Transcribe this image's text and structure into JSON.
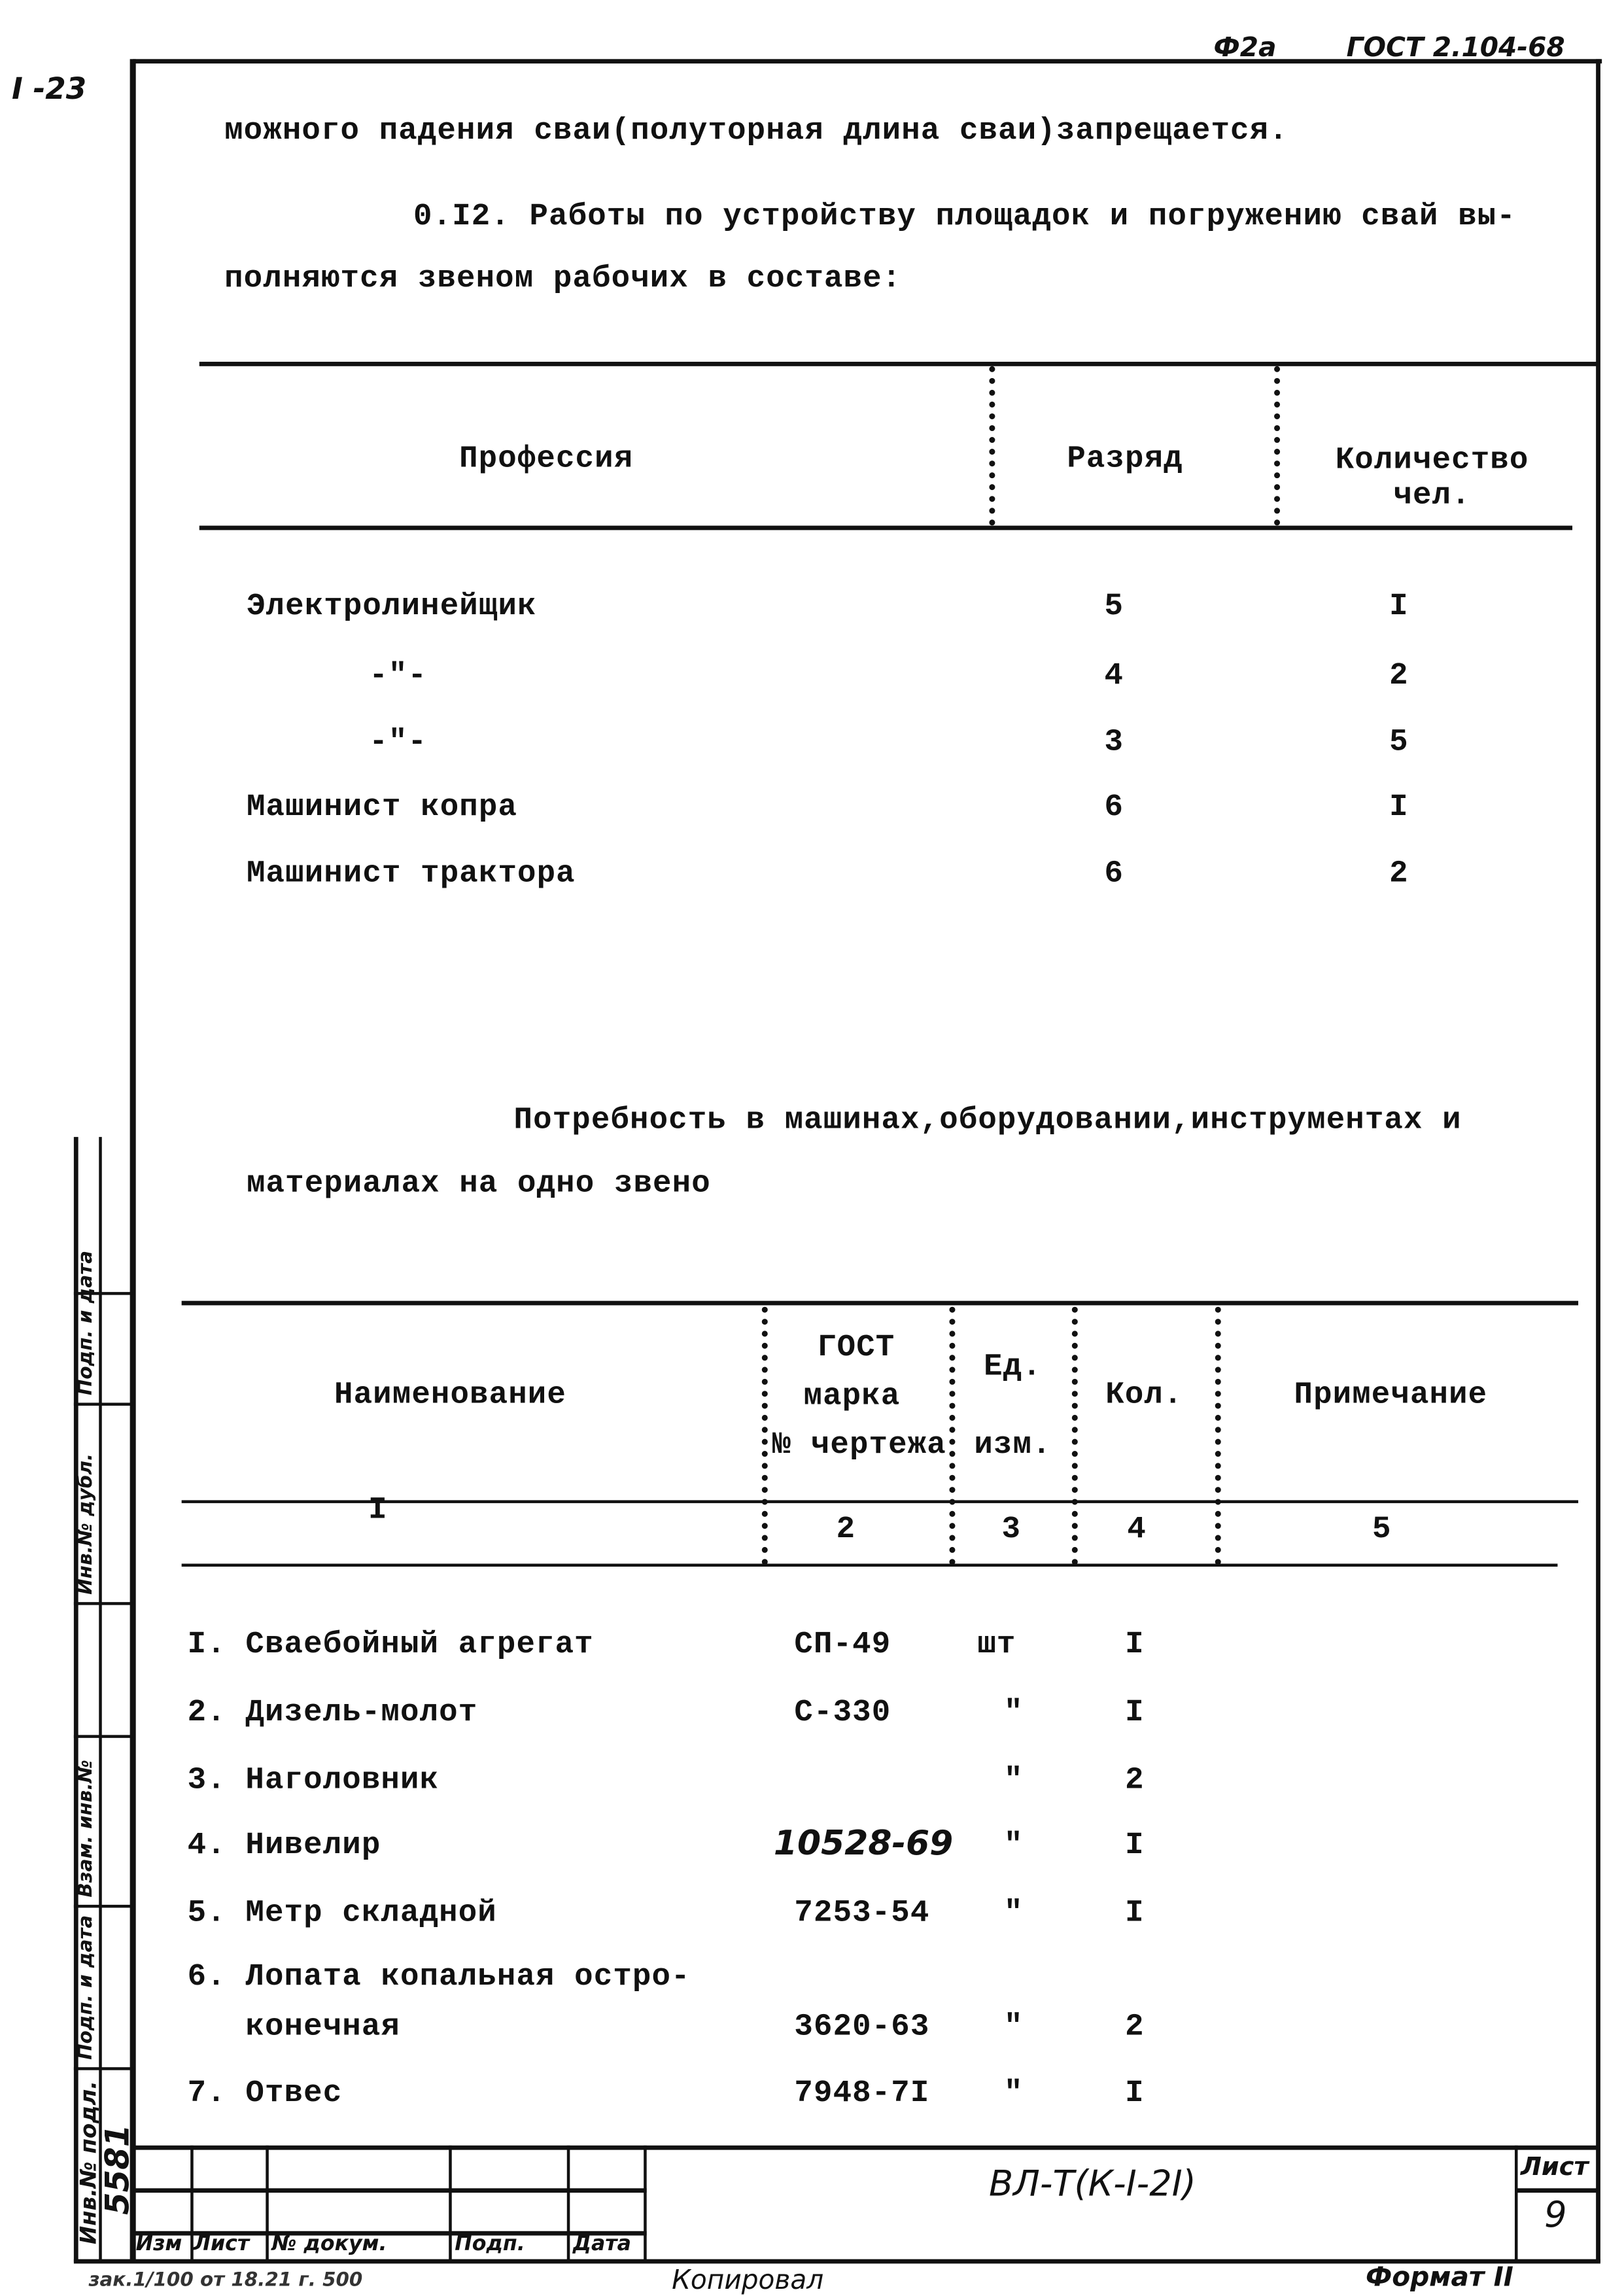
{
  "header": {
    "format_mark": "Ф2а",
    "standard": "ГОСТ 2.104-68",
    "page_ref": "I -23"
  },
  "body": {
    "line1": "можного падения сваи(полуторная длина сваи)запрещается.",
    "line2": "0.I2. Работы по устройству площадок и погружению свай вы-",
    "line3": "полняются звеном рабочих в составе:"
  },
  "crew_table": {
    "headers": {
      "profession": "Профессия",
      "grade": "Разряд",
      "count_1": "Количество",
      "count_2": "чел."
    },
    "rows": [
      {
        "profession": "Электролинейщик",
        "grade": "5",
        "count": "I"
      },
      {
        "profession": "-\"-",
        "grade": "4",
        "count": "2"
      },
      {
        "profession": "-\"-",
        "grade": "3",
        "count": "5"
      },
      {
        "profession": "Машинист копра",
        "grade": "6",
        "count": "I"
      },
      {
        "profession": "Машинист  трактора",
        "grade": "6",
        "count": "2"
      }
    ]
  },
  "equipment_title": {
    "line1": "Потребность в машинах,оборудовании,инструментах и",
    "line2": "материалах на одно звено"
  },
  "equipment_table": {
    "headers": {
      "name": "Наименование",
      "gost_1": "ГОСТ",
      "gost_2": "марка",
      "gost_3": "№ чертежа",
      "unit_1": "Ед.",
      "unit_2": "изм.",
      "qty": "Кол.",
      "note": "Примечание"
    },
    "col_numbers": [
      "I",
      "2",
      "3",
      "4",
      "5"
    ],
    "rows": [
      {
        "name": "I. Сваебойный агрегат",
        "gost": "СП-49",
        "unit": "шт",
        "qty": "I"
      },
      {
        "name": "2. Дизель-молот",
        "gost": "С-330",
        "unit": "\"",
        "qty": "I"
      },
      {
        "name": "3. Наголовник",
        "gost": "",
        "unit": "\"",
        "qty": "2"
      },
      {
        "name": "4. Нивелир",
        "gost": "10528-69",
        "unit": "\"",
        "qty": "I"
      },
      {
        "name": "5. Метр складной",
        "gost": "7253-54",
        "unit": "\"",
        "qty": "I"
      },
      {
        "name": "6. Лопата копальная остро-",
        "gost": "",
        "unit": "",
        "qty": ""
      },
      {
        "name": "   конечная",
        "gost": "3620-63",
        "unit": "\"",
        "qty": "2"
      },
      {
        "name": "7. Отвес",
        "gost": "7948-7I",
        "unit": "\"",
        "qty": "I"
      }
    ]
  },
  "title_block": {
    "designation": "ВЛ-Т(К-I-2I)",
    "sheet_label": "Лист",
    "sheet_number": "9",
    "cols": [
      "Изм",
      "Лист",
      "№ докум.",
      "Подп.",
      "Дата"
    ]
  },
  "side_stamp": {
    "inv_number": "5581",
    "labels": [
      "Инв.№ подл.",
      "Подп. и дата",
      "Взам. инв.№",
      "Инв.№ дубл.",
      "Подп. и дата"
    ]
  },
  "footer": {
    "copied": "Копировал",
    "format": "Формат II",
    "print_info": "зак.1/100 от 18.21 г. 500"
  }
}
